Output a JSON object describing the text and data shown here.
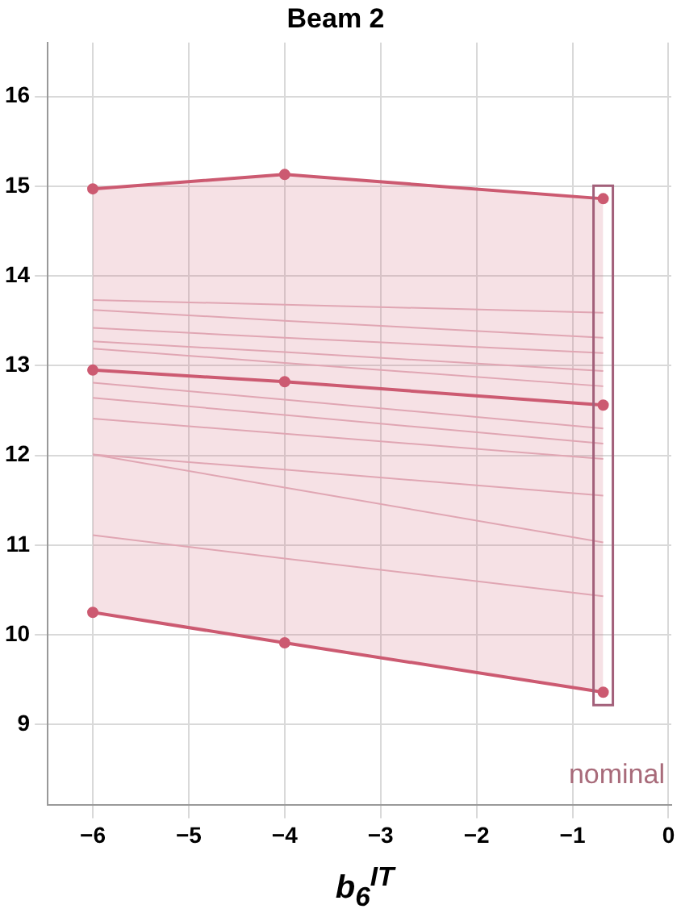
{
  "chart_data": {
    "type": "line",
    "title": "Beam 2",
    "xlabel": "b$_{6}$$^{IT}$",
    "x": [
      -6,
      -4,
      -0.68
    ],
    "series": [
      {
        "color": "#cc5a71",
        "values": [
          14.97,
          15.13,
          14.86
        ],
        "marker": "circle"
      },
      {
        "color": "#cc5a71",
        "values": [
          12.95,
          12.82,
          12.56
        ],
        "lower": [
          10.25,
          9.91,
          9.36
        ],
        "upper": [
          14.97,
          15.13,
          14.86
        ],
        "marker": "circle"
      },
      {
        "color": "#cc5a71",
        "values": [
          10.25,
          9.91,
          9.36
        ],
        "marker": "circle"
      },
      {
        "color": "#e0a6b3",
        "values": [
          13.73,
          13.68,
          13.59
        ],
        "marker": "none"
      },
      {
        "color": "#e0a6b3",
        "values": [
          13.62,
          13.5,
          13.31
        ],
        "marker": "none"
      },
      {
        "color": "#e0a6b3",
        "values": [
          13.42,
          13.31,
          13.14
        ],
        "marker": "none"
      },
      {
        "color": "#e0a6b3",
        "values": [
          13.27,
          13.15,
          12.94
        ],
        "marker": "none"
      },
      {
        "color": "#e0a6b3",
        "values": [
          13.19,
          13.03,
          12.77
        ],
        "marker": "none"
      },
      {
        "color": "#e0a6b3",
        "values": [
          12.81,
          12.62,
          12.3
        ],
        "marker": "none"
      },
      {
        "color": "#e0a6b3",
        "values": [
          12.64,
          12.45,
          12.13
        ],
        "marker": "none"
      },
      {
        "color": "#e0a6b3",
        "values": [
          12.41,
          12.24,
          11.96
        ],
        "marker": "none"
      },
      {
        "color": "#e0a6b3",
        "values": [
          12.01,
          11.84,
          11.55
        ],
        "marker": "none"
      },
      {
        "color": "#e0a6b3",
        "values": [
          12.01,
          11.64,
          11.03
        ],
        "marker": "none"
      },
      {
        "color": "#e0a6b3",
        "values": [
          11.11,
          10.85,
          10.43
        ],
        "marker": "none"
      }
    ],
    "annotations": [
      "nominal"
    ],
    "xlim": [
      -6.47,
      0.03
    ],
    "xticks": [
      -6,
      -5,
      -4,
      -3,
      -2,
      -1,
      0
    ],
    "ylim": [
      8.1,
      16.6
    ],
    "yticks": [
      9,
      10,
      11,
      12,
      13,
      14,
      15,
      16
    ],
    "grid": true,
    "line_style": "solid"
  }
}
